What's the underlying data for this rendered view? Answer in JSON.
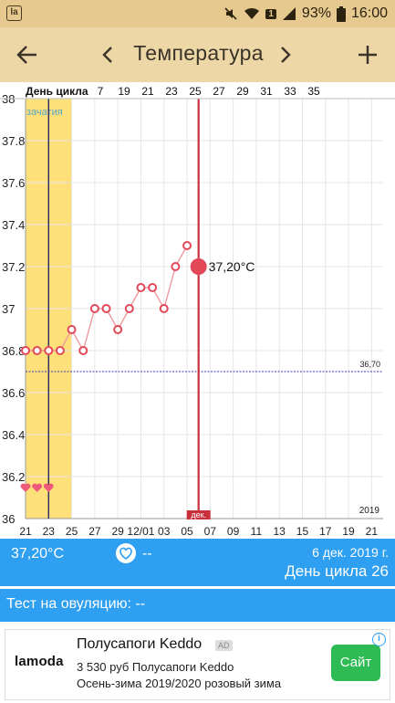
{
  "status_bar": {
    "battery": "93%",
    "time": "16:00",
    "sim_badge": "1",
    "icons": [
      "app-icon",
      "mute-icon",
      "wifi-icon",
      "signal-icon",
      "battery-icon"
    ]
  },
  "toolbar": {
    "title": "Температура",
    "icons": [
      "back-arrow-icon",
      "chevron-left-icon",
      "chevron-right-icon",
      "plus-icon"
    ]
  },
  "chart_data": {
    "type": "line",
    "ylabel_header": "День цикла",
    "cycle_day_labels": [
      "7",
      "19",
      "21",
      "23",
      "25",
      "27",
      "29",
      "31",
      "33",
      "35"
    ],
    "x_tick_labels": [
      "21",
      "23",
      "25",
      "27",
      "29",
      "12/01",
      "03",
      "05",
      "07",
      "09",
      "11",
      "13",
      "15",
      "17",
      "19",
      "21"
    ],
    "year_label": "2019",
    "y_tick_labels": [
      "38",
      "37.8",
      "37.6",
      "37.4",
      "37.2",
      "37",
      "36.8",
      "36.6",
      "36.4",
      "36.2",
      "36"
    ],
    "ylim": [
      36.0,
      38.0
    ],
    "x_domain_days": [
      21,
      52
    ],
    "series": [
      {
        "x": [
          21,
          22,
          23,
          24,
          25,
          26,
          27,
          28,
          29,
          30,
          31,
          32,
          33,
          34,
          35
        ],
        "y": [
          36.8,
          36.8,
          36.8,
          36.8,
          36.9,
          36.8,
          37.0,
          37.0,
          36.9,
          37.0,
          37.1,
          37.1,
          37.0,
          37.2,
          37.3
        ]
      }
    ],
    "selected_point": {
      "x": 36,
      "y": 37.2,
      "label": "37,20°C"
    },
    "coverline": {
      "value": 36.7,
      "label": "36,70"
    },
    "fertile_window": {
      "x_start": 21,
      "x_end": 25,
      "label": "зачатия"
    },
    "ovulation_marker_x": 23,
    "current_day_x": 36,
    "current_day_label": "дек.",
    "heart_markers_x": [
      21,
      22,
      23
    ],
    "colors": {
      "line": "#ef9aa0",
      "point": "#e24858",
      "fertile": "#fde07a",
      "coverline": "#3b3bb5",
      "current_day": "#c9303c"
    }
  },
  "summary": {
    "temperature": "37,20°C",
    "note": "--",
    "date": "6 дек. 2019 г.",
    "cycle_day": "День цикла 26"
  },
  "ovulation_test": {
    "text": "Тест на овуляцию: --"
  },
  "ad": {
    "brand": "lamoda",
    "title": "Полусапоги Keddo",
    "badge": "AD",
    "line1": "3 530 руб Полусапоги Keddo",
    "line2": "Осень-зима 2019/2020 розовый зима",
    "cta": "Сайт",
    "info": "i"
  }
}
